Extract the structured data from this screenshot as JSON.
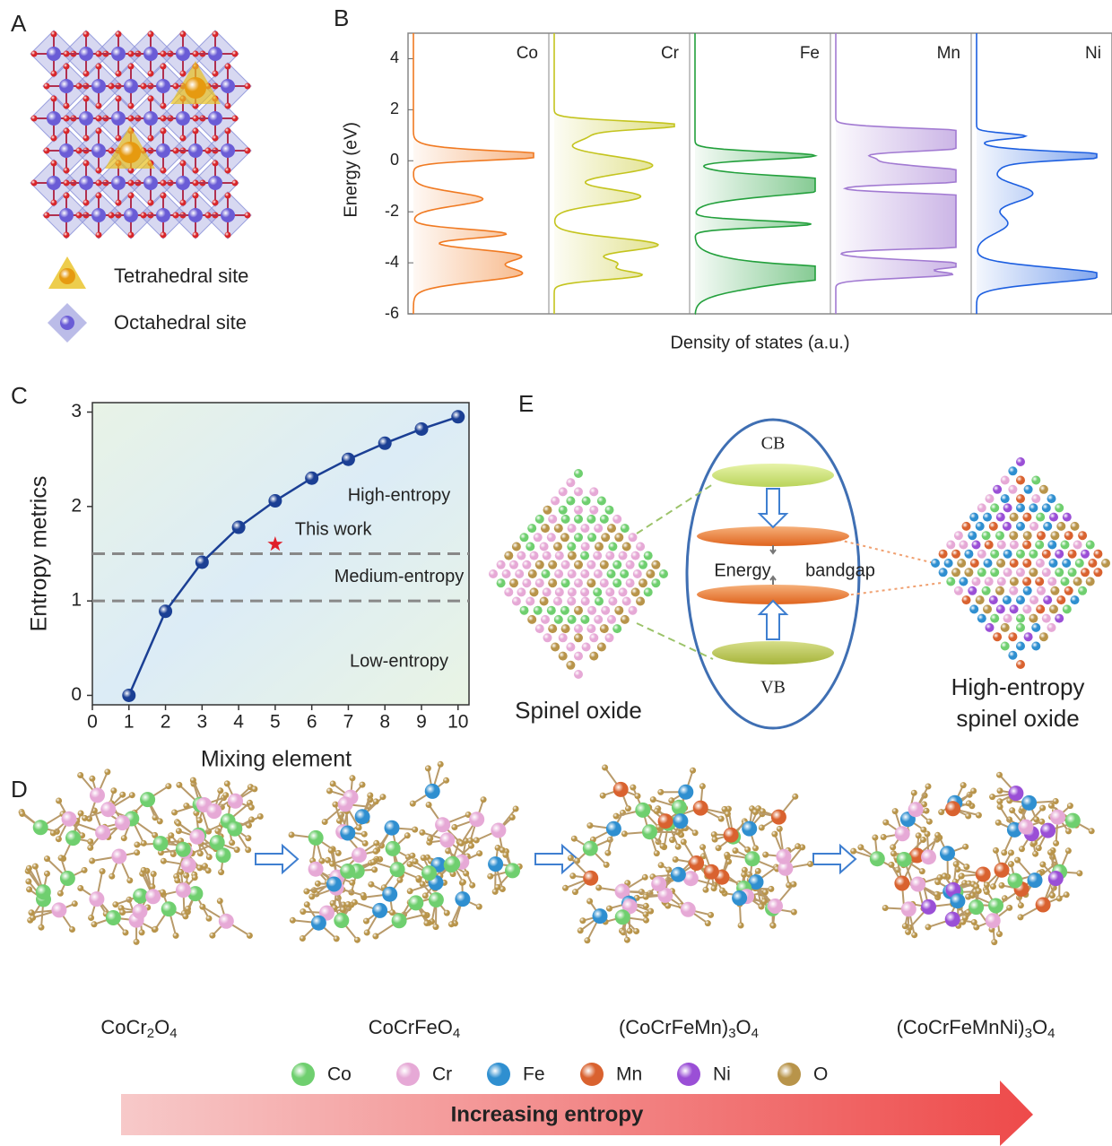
{
  "panel_labels": [
    "A",
    "B",
    "C",
    "D",
    "E"
  ],
  "structure_legend": [
    "Tetrahedral site",
    "Octahedral site"
  ],
  "dos": {
    "ylabel": "Energy (eV)",
    "xlabel": "Density of states (a.u.)",
    "ylim": [
      -6,
      5
    ],
    "yticks": [
      4,
      2,
      0,
      -2,
      -4,
      -6
    ],
    "elements": [
      {
        "name": "Co",
        "color": "#f07a22"
      },
      {
        "name": "Cr",
        "color": "#c4c41e"
      },
      {
        "name": "Fe",
        "color": "#23a03c"
      },
      {
        "name": "Mn",
        "color": "#a27ad2"
      },
      {
        "name": "Ni",
        "color": "#1d5fe0"
      }
    ]
  },
  "chart_data": {
    "type": "line",
    "x": [
      1,
      2,
      3,
      4,
      5,
      6,
      7,
      8,
      9,
      10
    ],
    "values": [
      0,
      0.89,
      1.41,
      1.78,
      2.06,
      2.3,
      2.5,
      2.67,
      2.82,
      2.95
    ],
    "color": "#1b3f94",
    "xlim": [
      0,
      10.3
    ],
    "ylim": [
      -0.1,
      3.1
    ],
    "xticks": [
      0,
      1,
      2,
      3,
      4,
      5,
      6,
      7,
      8,
      9,
      10
    ],
    "yticks": [
      0,
      1,
      2,
      3
    ],
    "xlabel": "Mixing element",
    "ylabel": "Entropy metrics",
    "thresholds": [
      1,
      1.5
    ],
    "regions": [
      "High-entropy",
      "Medium-entropy",
      "Low-entropy"
    ],
    "highlight": {
      "label": "This work",
      "x": 5,
      "y": 1.6,
      "color": "#e0202a"
    }
  },
  "bandgap": {
    "cb": "CB",
    "vb": "VB",
    "gap_labels": [
      "Energy",
      "bandgap"
    ],
    "left": "Spinel oxide",
    "right": [
      "High-entropy",
      "spinel oxide"
    ]
  },
  "compounds": [
    [
      "CoCr",
      "2",
      "O",
      "4"
    ],
    [
      "CoCrFeO",
      "4"
    ],
    [
      "(CoCrFeMn)",
      "3",
      "O",
      "4"
    ],
    [
      "(CoCrFeMnNi)",
      "3",
      "O",
      "4"
    ]
  ],
  "elements": [
    {
      "name": "Co",
      "color": "#6fcf6f"
    },
    {
      "name": "Cr",
      "color": "#e6a9d6"
    },
    {
      "name": "Fe",
      "color": "#2f8fd0"
    },
    {
      "name": "Mn",
      "color": "#d9622f"
    },
    {
      "name": "Ni",
      "color": "#9a4fd6"
    },
    {
      "name": "O",
      "color": "#b8944a"
    }
  ],
  "arrow_label": "Increasing entropy"
}
